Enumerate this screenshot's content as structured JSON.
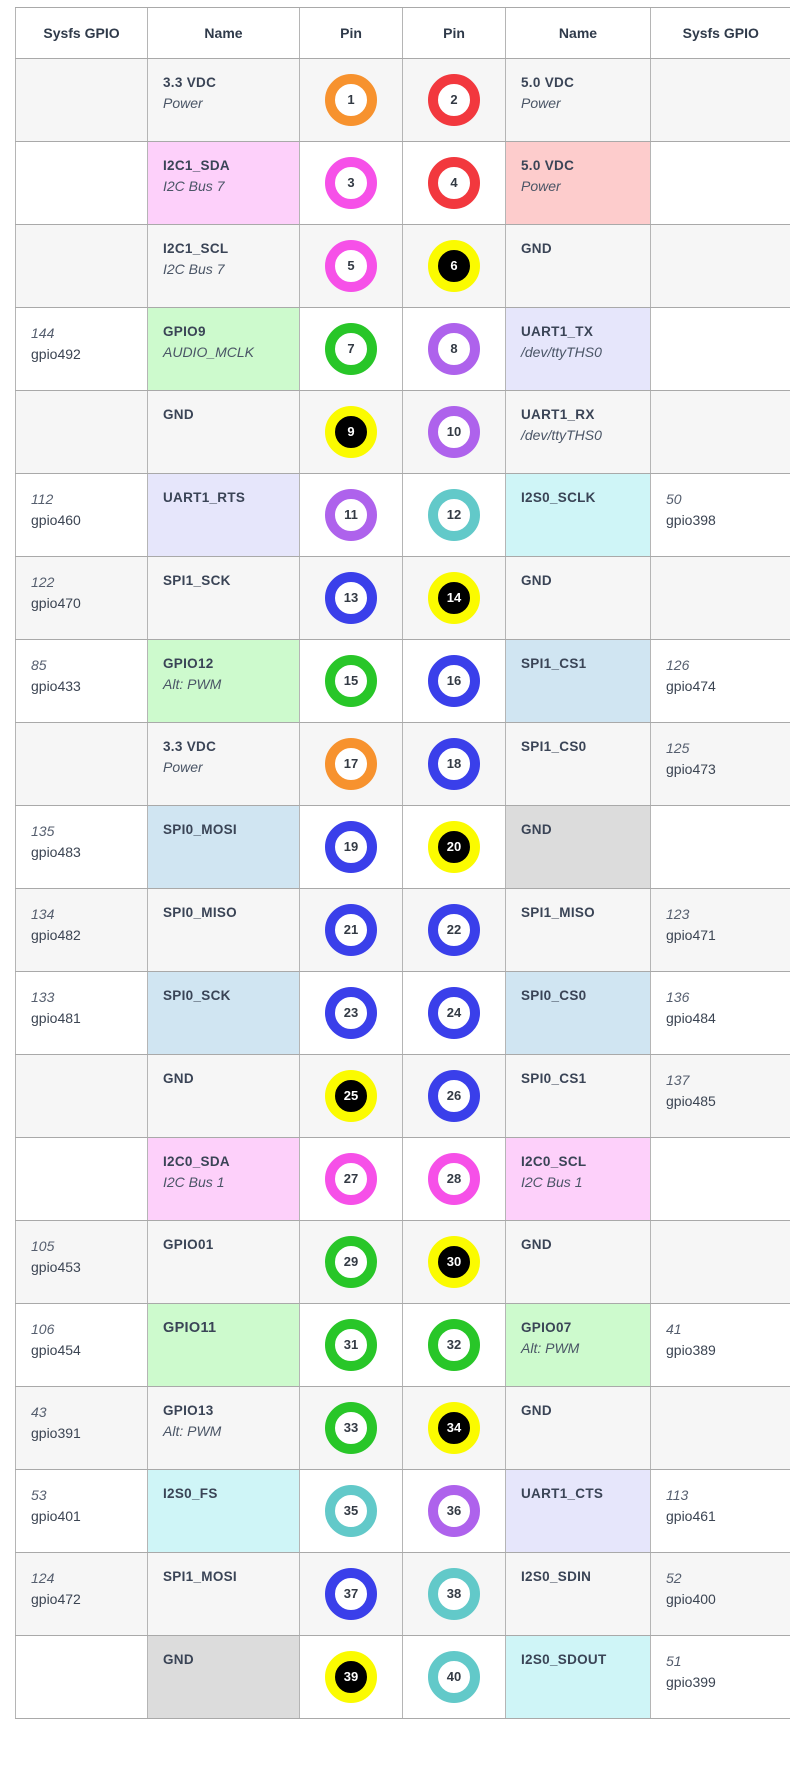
{
  "headers": [
    "Sysfs GPIO",
    "Name",
    "Pin",
    "Pin",
    "Name",
    "Sysfs GPIO"
  ],
  "colors": {
    "orange": "#f7922e",
    "red": "#f2383e",
    "magenta": "#f650e8",
    "yellow": "#fbfb00",
    "green": "#28c628",
    "purple": "#ae62ec",
    "teal": "#62c9c9",
    "blue": "#3a3fea"
  },
  "rows": [
    {
      "l_num": "",
      "l_gpio": "",
      "l_name": "3.3 VDC",
      "l_sub": "Power",
      "l_hl": "",
      "l_pin": "1",
      "l_color": "orange",
      "r_pin": "2",
      "r_color": "red",
      "r_name": "5.0 VDC",
      "r_sub": "Power",
      "r_hl": "",
      "r_num": "",
      "r_gpio": ""
    },
    {
      "l_num": "",
      "l_gpio": "",
      "l_name": "I2C1_SDA",
      "l_sub": "I2C Bus 7",
      "l_hl": "pink",
      "l_pin": "3",
      "l_color": "magenta",
      "r_pin": "4",
      "r_color": "red",
      "r_name": "5.0 VDC",
      "r_sub": "Power",
      "r_hl": "red",
      "r_num": "",
      "r_gpio": ""
    },
    {
      "l_num": "",
      "l_gpio": "",
      "l_name": "I2C1_SCL",
      "l_sub": "I2C Bus 7",
      "l_hl": "",
      "l_pin": "5",
      "l_color": "magenta",
      "r_pin": "6",
      "r_color": "yellow",
      "r_name": "GND",
      "r_sub": "",
      "r_hl": "",
      "r_num": "",
      "r_gpio": ""
    },
    {
      "l_num": "144",
      "l_gpio": "gpio492",
      "l_name": "GPIO9",
      "l_sub": "AUDIO_MCLK",
      "l_hl": "green",
      "l_pin": "7",
      "l_color": "green",
      "r_pin": "8",
      "r_color": "purple",
      "r_name": "UART1_TX",
      "r_sub": "/dev/ttyTHS0",
      "r_hl": "lav",
      "r_num": "",
      "r_gpio": ""
    },
    {
      "l_num": "",
      "l_gpio": "",
      "l_name": "GND",
      "l_sub": "",
      "l_hl": "",
      "l_pin": "9",
      "l_color": "yellow",
      "r_pin": "10",
      "r_color": "purple",
      "r_name": "UART1_RX",
      "r_sub": "/dev/ttyTHS0",
      "r_hl": "",
      "r_num": "",
      "r_gpio": ""
    },
    {
      "l_num": "112",
      "l_gpio": "gpio460",
      "l_name": "UART1_RTS",
      "l_sub": "",
      "l_hl": "lav",
      "l_pin": "11",
      "l_color": "purple",
      "r_pin": "12",
      "r_color": "teal",
      "r_name": "I2S0_SCLK",
      "r_sub": "",
      "r_hl": "cyan",
      "r_num": "50",
      "r_gpio": "gpio398"
    },
    {
      "l_num": "122",
      "l_gpio": "gpio470",
      "l_name": "SPI1_SCK",
      "l_sub": "",
      "l_hl": "",
      "l_pin": "13",
      "l_color": "blue",
      "r_pin": "14",
      "r_color": "yellow",
      "r_name": "GND",
      "r_sub": "",
      "r_hl": "",
      "r_num": "",
      "r_gpio": ""
    },
    {
      "l_num": "85",
      "l_gpio": "gpio433",
      "l_name": "GPIO12",
      "l_sub": "Alt: PWM",
      "l_hl": "green",
      "l_pin": "15",
      "l_color": "green",
      "r_pin": "16",
      "r_color": "blue",
      "r_name": "SPI1_CS1",
      "r_sub": "",
      "r_hl": "blue",
      "r_num": "126",
      "r_gpio": "gpio474"
    },
    {
      "l_num": "",
      "l_gpio": "",
      "l_name": "3.3 VDC",
      "l_sub": "Power",
      "l_hl": "",
      "l_pin": "17",
      "l_color": "orange",
      "r_pin": "18",
      "r_color": "blue",
      "r_name": "SPI1_CS0",
      "r_sub": "",
      "r_hl": "",
      "r_num": "125",
      "r_gpio": "gpio473"
    },
    {
      "l_num": "135",
      "l_gpio": "gpio483",
      "l_name": "SPI0_MOSI",
      "l_sub": "",
      "l_hl": "blue",
      "l_pin": "19",
      "l_color": "blue",
      "r_pin": "20",
      "r_color": "yellow",
      "r_name": "GND",
      "r_sub": "",
      "r_hl": "gray",
      "r_num": "",
      "r_gpio": ""
    },
    {
      "l_num": "134",
      "l_gpio": "gpio482",
      "l_name": "SPI0_MISO",
      "l_sub": "",
      "l_hl": "",
      "l_pin": "21",
      "l_color": "blue",
      "r_pin": "22",
      "r_color": "blue",
      "r_name": "SPI1_MISO",
      "r_sub": "",
      "r_hl": "",
      "r_num": "123",
      "r_gpio": "gpio471"
    },
    {
      "l_num": "133",
      "l_gpio": "gpio481",
      "l_name": "SPI0_SCK",
      "l_sub": "",
      "l_hl": "blue",
      "l_pin": "23",
      "l_color": "blue",
      "r_pin": "24",
      "r_color": "blue",
      "r_name": "SPI0_CS0",
      "r_sub": "",
      "r_hl": "blue",
      "r_num": "136",
      "r_gpio": "gpio484"
    },
    {
      "l_num": "",
      "l_gpio": "",
      "l_name": "GND",
      "l_sub": "",
      "l_hl": "",
      "l_pin": "25",
      "l_color": "yellow",
      "r_pin": "26",
      "r_color": "blue",
      "r_name": "SPI0_CS1",
      "r_sub": "",
      "r_hl": "",
      "r_num": "137",
      "r_gpio": "gpio485"
    },
    {
      "l_num": "",
      "l_gpio": "",
      "l_name": "I2C0_SDA",
      "l_sub": "I2C Bus 1",
      "l_hl": "pink",
      "l_pin": "27",
      "l_color": "magenta",
      "r_pin": "28",
      "r_color": "magenta",
      "r_name": "I2C0_SCL",
      "r_sub": "I2C Bus 1",
      "r_hl": "pink",
      "r_num": "",
      "r_gpio": ""
    },
    {
      "l_num": "105",
      "l_gpio": "gpio453",
      "l_name": "GPIO01",
      "l_sub": "",
      "l_hl": "",
      "l_pin": "29",
      "l_color": "green",
      "r_pin": "30",
      "r_color": "yellow",
      "r_name": "GND",
      "r_sub": "",
      "r_hl": "",
      "r_num": "",
      "r_gpio": ""
    },
    {
      "l_num": "106",
      "l_gpio": "gpio454",
      "l_name": "GPIO11",
      "l_sub": "",
      "l_hl": "green",
      "l_pin": "31",
      "l_color": "green",
      "r_pin": "32",
      "r_color": "green",
      "r_name": "GPIO07",
      "r_sub": "Alt: PWM",
      "r_hl": "green",
      "r_num": "41",
      "r_gpio": "gpio389"
    },
    {
      "l_num": "43",
      "l_gpio": "gpio391",
      "l_name": "GPIO13",
      "l_sub": "Alt: PWM",
      "l_hl": "",
      "l_pin": "33",
      "l_color": "green",
      "r_pin": "34",
      "r_color": "yellow",
      "r_name": "GND",
      "r_sub": "",
      "r_hl": "",
      "r_num": "",
      "r_gpio": ""
    },
    {
      "l_num": "53",
      "l_gpio": "gpio401",
      "l_name": "I2S0_FS",
      "l_sub": "",
      "l_hl": "cyan",
      "l_pin": "35",
      "l_color": "teal",
      "r_pin": "36",
      "r_color": "purple",
      "r_name": "UART1_CTS",
      "r_sub": "",
      "r_hl": "lav",
      "r_num": "113",
      "r_gpio": "gpio461"
    },
    {
      "l_num": "124",
      "l_gpio": "gpio472",
      "l_name": "SPI1_MOSI",
      "l_sub": "",
      "l_hl": "",
      "l_pin": "37",
      "l_color": "blue",
      "r_pin": "38",
      "r_color": "teal",
      "r_name": "I2S0_SDIN",
      "r_sub": "",
      "r_hl": "",
      "r_num": "52",
      "r_gpio": "gpio400"
    },
    {
      "l_num": "",
      "l_gpio": "",
      "l_name": "GND",
      "l_sub": "",
      "l_hl": "gray",
      "l_pin": "39",
      "l_color": "yellow",
      "r_pin": "40",
      "r_color": "teal",
      "r_name": "I2S0_SDOUT",
      "r_sub": "",
      "r_hl": "cyan",
      "r_num": "51",
      "r_gpio": "gpio399"
    }
  ]
}
